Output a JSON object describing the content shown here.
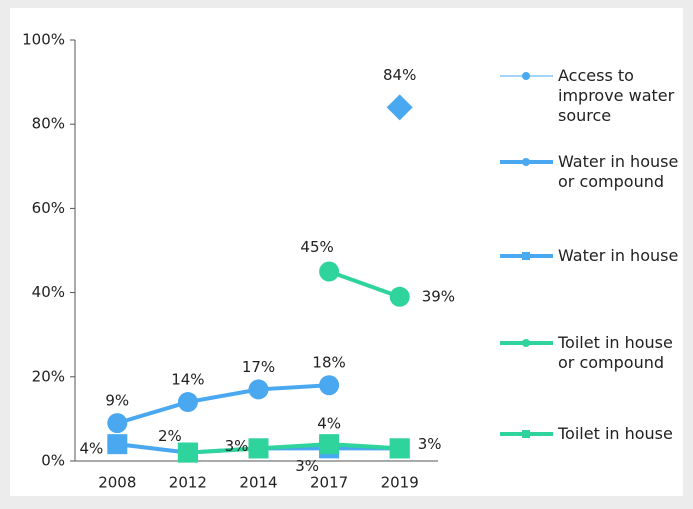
{
  "chart_data": {
    "type": "line",
    "categories": [
      "2008",
      "2012",
      "2014",
      "2017",
      "2019"
    ],
    "ylim": [
      0,
      100
    ],
    "yticks": [
      {
        "value": 0,
        "label": "0%"
      },
      {
        "value": 20,
        "label": "20%"
      },
      {
        "value": 40,
        "label": "40%"
      },
      {
        "value": 60,
        "label": "60%"
      },
      {
        "value": 80,
        "label": "80%"
      },
      {
        "value": 100,
        "label": "100%"
      }
    ],
    "legend": "right",
    "series": [
      {
        "name": "Access to improve water source",
        "color": "#4aa8f0",
        "marker": "diamond",
        "line_width": 1,
        "values": [
          null,
          null,
          null,
          null,
          84
        ],
        "value_labels": [
          null,
          null,
          null,
          null,
          "84%"
        ]
      },
      {
        "name": "Water in house or compound",
        "color": "#4aa8f0",
        "marker": "circle",
        "line_width": 4,
        "values": [
          9,
          14,
          17,
          18,
          null
        ],
        "value_labels": [
          "9%",
          "14%",
          "17%",
          "18%",
          null
        ]
      },
      {
        "name": "Water in house",
        "color": "#4aa8f0",
        "marker": "square",
        "line_width": 4,
        "values": [
          4,
          2,
          3,
          3,
          3
        ],
        "value_labels": [
          "4%",
          null,
          null,
          "3%",
          null
        ]
      },
      {
        "name": "Toilet in house or compound",
        "color": "#2fd39c",
        "marker": "circle",
        "line_width": 4,
        "values": [
          null,
          null,
          null,
          45,
          39
        ],
        "value_labels": [
          null,
          null,
          null,
          "45%",
          "39%"
        ]
      },
      {
        "name": "Toilet in house",
        "color": "#2fd39c",
        "marker": "square",
        "line_width": 4,
        "values": [
          null,
          2,
          3,
          4,
          3
        ],
        "value_labels": [
          null,
          "2%",
          "3%",
          "4%",
          "3%"
        ]
      }
    ]
  }
}
